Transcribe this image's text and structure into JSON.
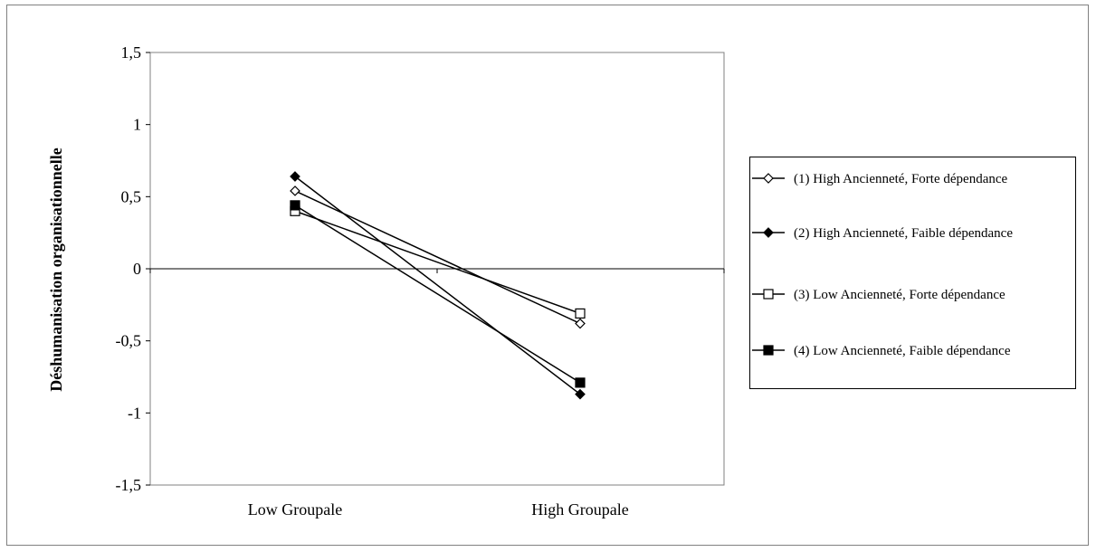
{
  "chart_data": {
    "type": "line",
    "title": "",
    "xlabel": "",
    "ylabel": "Déshumanisation organisationnelle",
    "categories": [
      "Low Groupale",
      "High Groupale"
    ],
    "ylim": [
      -1.5,
      1.5
    ],
    "yticks": [
      "1,5",
      "1",
      "0,5",
      "0",
      "-0,5",
      "-1",
      "-1,5"
    ],
    "ytick_values": [
      1.5,
      1,
      0.5,
      0,
      -0.5,
      -1,
      -1.5
    ],
    "grid": false,
    "legend_position": "right",
    "series": [
      {
        "name": "(1) High Ancienneté, Forte dépendance",
        "marker": "diamond-open",
        "values": [
          0.54,
          -0.38
        ]
      },
      {
        "name": "(2) High Ancienneté, Faible dépendance",
        "marker": "diamond-filled",
        "values": [
          0.64,
          -0.87
        ]
      },
      {
        "name": "(3) Low Ancienneté, Forte dépendance",
        "marker": "square-open",
        "values": [
          0.4,
          -0.31
        ]
      },
      {
        "name": "(4) Low Ancienneté, Faible dépendance",
        "marker": "square-filled",
        "values": [
          0.44,
          -0.79
        ]
      }
    ]
  }
}
